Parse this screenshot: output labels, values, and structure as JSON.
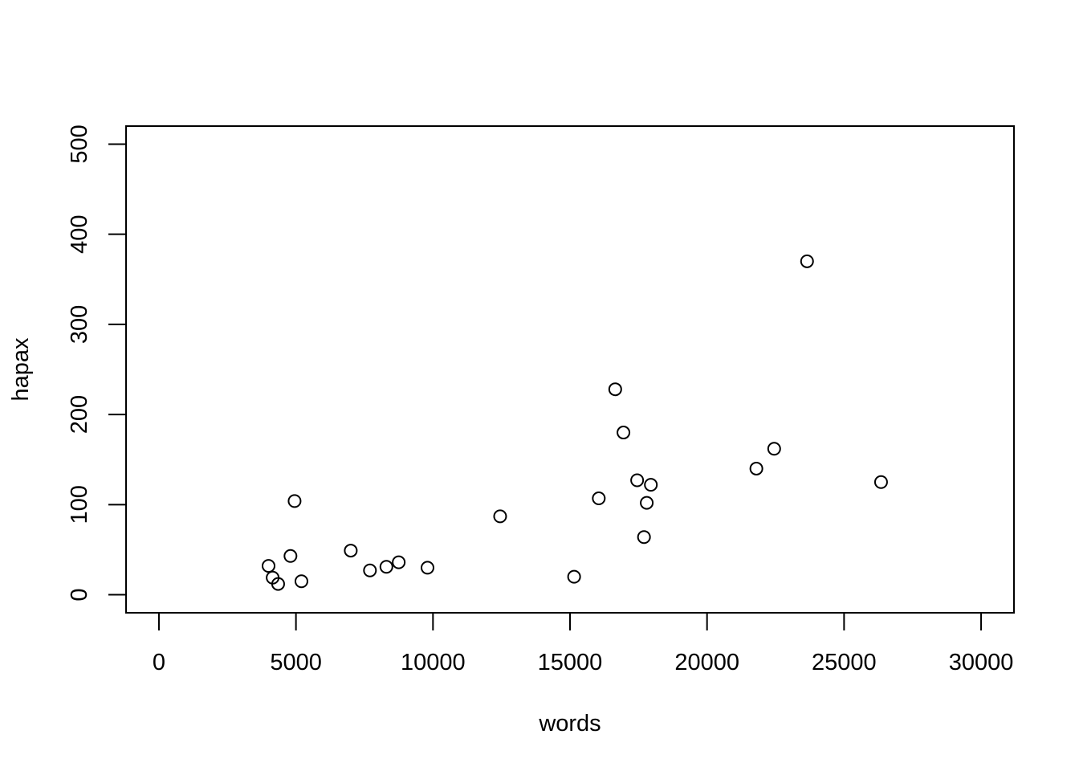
{
  "chart_data": {
    "type": "scatter",
    "title": "",
    "xlabel": "words",
    "ylabel": "hapax",
    "xlim": [
      -1200,
      31200
    ],
    "ylim": [
      -20,
      520
    ],
    "x_ticks": [
      0,
      5000,
      10000,
      15000,
      20000,
      25000,
      30000
    ],
    "y_ticks": [
      0,
      100,
      200,
      300,
      400,
      500
    ],
    "x_tick_labels": [
      "0",
      "5000",
      "10000",
      "15000",
      "20000",
      "25000",
      "30000"
    ],
    "y_tick_labels": [
      "0",
      "100",
      "200",
      "300",
      "400",
      "500"
    ],
    "grid": false,
    "marker": "open-circle",
    "points": [
      {
        "x": 4000,
        "y": 32
      },
      {
        "x": 4150,
        "y": 19
      },
      {
        "x": 4350,
        "y": 12
      },
      {
        "x": 4800,
        "y": 43
      },
      {
        "x": 4950,
        "y": 104
      },
      {
        "x": 5200,
        "y": 15
      },
      {
        "x": 7000,
        "y": 49
      },
      {
        "x": 7700,
        "y": 27
      },
      {
        "x": 8300,
        "y": 31
      },
      {
        "x": 8750,
        "y": 36
      },
      {
        "x": 9800,
        "y": 30
      },
      {
        "x": 12450,
        "y": 87
      },
      {
        "x": 15150,
        "y": 20
      },
      {
        "x": 16050,
        "y": 107
      },
      {
        "x": 16650,
        "y": 228
      },
      {
        "x": 16950,
        "y": 180
      },
      {
        "x": 17450,
        "y": 127
      },
      {
        "x": 17700,
        "y": 64
      },
      {
        "x": 17800,
        "y": 102
      },
      {
        "x": 17950,
        "y": 122
      },
      {
        "x": 21800,
        "y": 140
      },
      {
        "x": 22450,
        "y": 162
      },
      {
        "x": 23650,
        "y": 370
      },
      {
        "x": 26350,
        "y": 125
      }
    ]
  }
}
